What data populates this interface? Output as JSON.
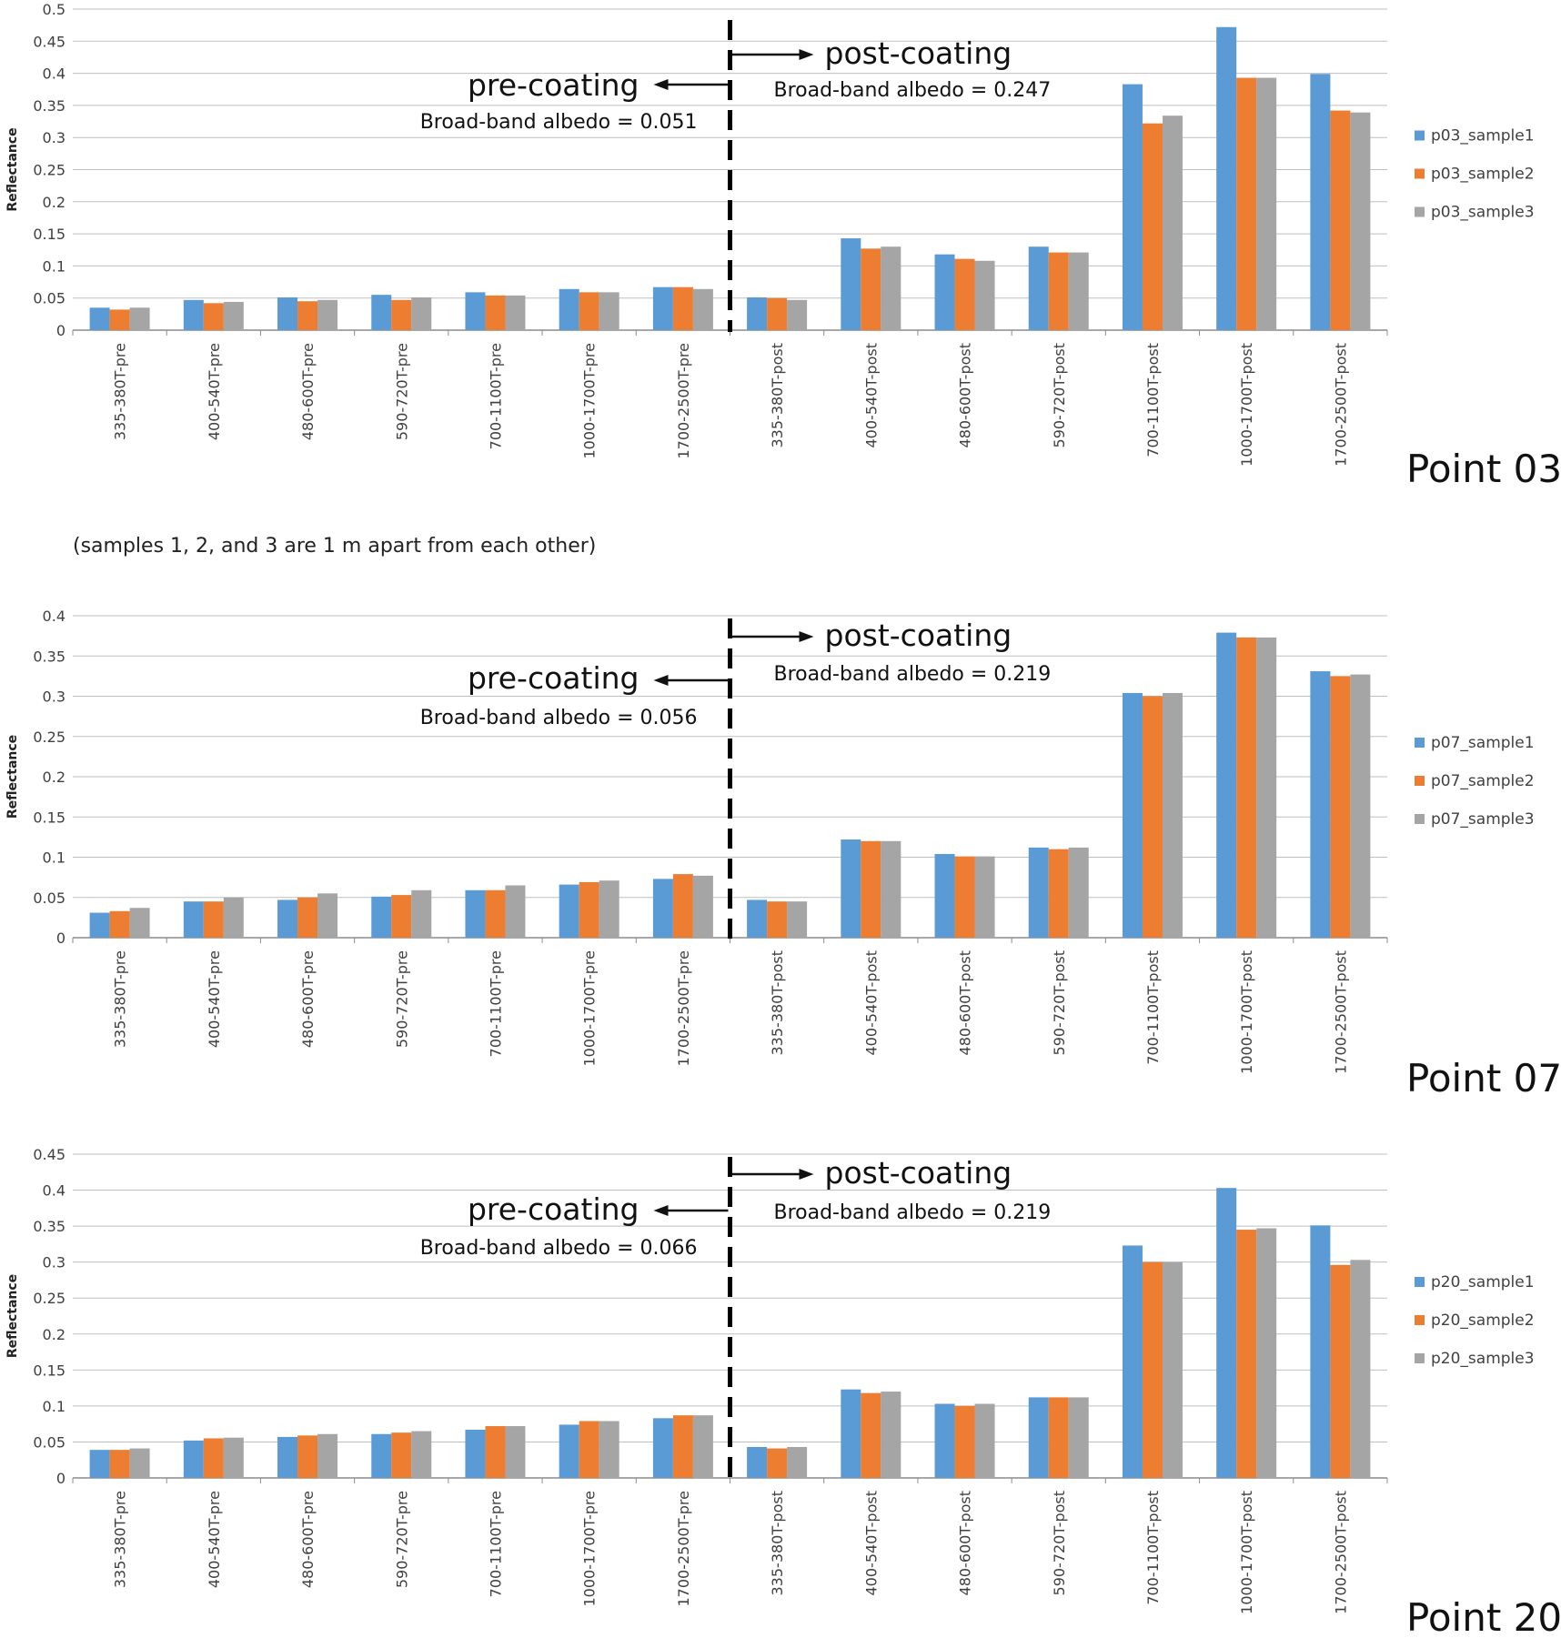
{
  "note": "(samples 1, 2, and 3 are 1 m apart from each other)",
  "colors": {
    "sample1": "#5B9BD5",
    "sample2": "#ED7D31",
    "sample3": "#A5A5A5"
  },
  "chart_data": [
    {
      "type": "bar",
      "title": "Point 03",
      "ylabel": "Reflectance",
      "ylim": [
        0,
        0.5
      ],
      "yticks": [
        "0",
        "0.05",
        "0.1",
        "0.15",
        "0.2",
        "0.25",
        "0.3",
        "0.35",
        "0.4",
        "0.45",
        "0.5"
      ],
      "categories": [
        "335-380T-pre",
        "400-540T-pre",
        "480-600T-pre",
        "590-720T-pre",
        "700-1100T-pre",
        "1000-1700T-pre",
        "1700-2500T-pre",
        "335-380T-post",
        "400-540T-post",
        "480-600T-post",
        "590-720T-post",
        "700-1100T-post",
        "1000-1700T-post",
        "1700-2500T-post"
      ],
      "series": [
        {
          "name": "p03_sample1",
          "values": [
            0.035,
            0.047,
            0.051,
            0.055,
            0.059,
            0.064,
            0.067,
            0.051,
            0.143,
            0.118,
            0.13,
            0.383,
            0.472,
            0.399
          ]
        },
        {
          "name": "p03_sample2",
          "values": [
            0.032,
            0.042,
            0.045,
            0.047,
            0.054,
            0.059,
            0.067,
            0.05,
            0.127,
            0.111,
            0.121,
            0.322,
            0.393,
            0.342
          ]
        },
        {
          "name": "p03_sample3",
          "values": [
            0.035,
            0.044,
            0.047,
            0.051,
            0.054,
            0.059,
            0.064,
            0.047,
            0.13,
            0.108,
            0.121,
            0.334,
            0.393,
            0.339
          ]
        }
      ],
      "annotations": {
        "pre_label": "pre-coating",
        "post_label": "post-coating",
        "pre_albedo": "Broad-band albedo = 0.051",
        "post_albedo": "Broad-band albedo = 0.247"
      }
    },
    {
      "type": "bar",
      "title": "Point 07",
      "ylabel": "Reflectance",
      "ylim": [
        0,
        0.4
      ],
      "yticks": [
        "0",
        "0.05",
        "0.1",
        "0.15",
        "0.2",
        "0.25",
        "0.3",
        "0.35",
        "0.4"
      ],
      "categories": [
        "335-380T-pre",
        "400-540T-pre",
        "480-600T-pre",
        "590-720T-pre",
        "700-1100T-pre",
        "1000-1700T-pre",
        "1700-2500T-pre",
        "335-380T-post",
        "400-540T-post",
        "480-600T-post",
        "590-720T-post",
        "700-1100T-post",
        "1000-1700T-post",
        "1700-2500T-post"
      ],
      "series": [
        {
          "name": "p07_sample1",
          "values": [
            0.031,
            0.045,
            0.047,
            0.051,
            0.059,
            0.066,
            0.073,
            0.047,
            0.122,
            0.104,
            0.112,
            0.304,
            0.379,
            0.331
          ]
        },
        {
          "name": "p07_sample2",
          "values": [
            0.033,
            0.045,
            0.05,
            0.053,
            0.059,
            0.069,
            0.079,
            0.045,
            0.12,
            0.101,
            0.11,
            0.3,
            0.373,
            0.325
          ]
        },
        {
          "name": "p07_sample3",
          "values": [
            0.037,
            0.05,
            0.055,
            0.059,
            0.065,
            0.071,
            0.077,
            0.045,
            0.12,
            0.101,
            0.112,
            0.304,
            0.373,
            0.327
          ]
        }
      ],
      "annotations": {
        "pre_label": "pre-coating",
        "post_label": "post-coating",
        "pre_albedo": "Broad-band albedo = 0.056",
        "post_albedo": "Broad-band albedo = 0.219"
      }
    },
    {
      "type": "bar",
      "title": "Point 20",
      "ylabel": "Reflectance",
      "ylim": [
        0,
        0.45
      ],
      "yticks": [
        "0",
        "0.05",
        "0.1",
        "0.15",
        "0.2",
        "0.25",
        "0.3",
        "0.35",
        "0.4",
        "0.45"
      ],
      "categories": [
        "335-380T-pre",
        "400-540T-pre",
        "480-600T-pre",
        "590-720T-pre",
        "700-1100T-pre",
        "1000-1700T-pre",
        "1700-2500T-pre",
        "335-380T-post",
        "400-540T-post",
        "480-600T-post",
        "590-720T-post",
        "700-1100T-post",
        "1000-1700T-post",
        "1700-2500T-post"
      ],
      "series": [
        {
          "name": "p20_sample1",
          "values": [
            0.039,
            0.052,
            0.057,
            0.061,
            0.067,
            0.074,
            0.083,
            0.043,
            0.123,
            0.103,
            0.112,
            0.323,
            0.403,
            0.351
          ]
        },
        {
          "name": "p20_sample2",
          "values": [
            0.039,
            0.055,
            0.059,
            0.063,
            0.072,
            0.079,
            0.087,
            0.041,
            0.118,
            0.1,
            0.112,
            0.3,
            0.345,
            0.296
          ]
        },
        {
          "name": "p20_sample3",
          "values": [
            0.041,
            0.056,
            0.061,
            0.065,
            0.072,
            0.079,
            0.087,
            0.043,
            0.12,
            0.103,
            0.112,
            0.3,
            0.347,
            0.303
          ]
        }
      ],
      "annotations": {
        "pre_label": "pre-coating",
        "post_label": "post-coating",
        "pre_albedo": "Broad-band albedo = 0.066",
        "post_albedo": "Broad-band albedo = 0.219"
      }
    }
  ]
}
